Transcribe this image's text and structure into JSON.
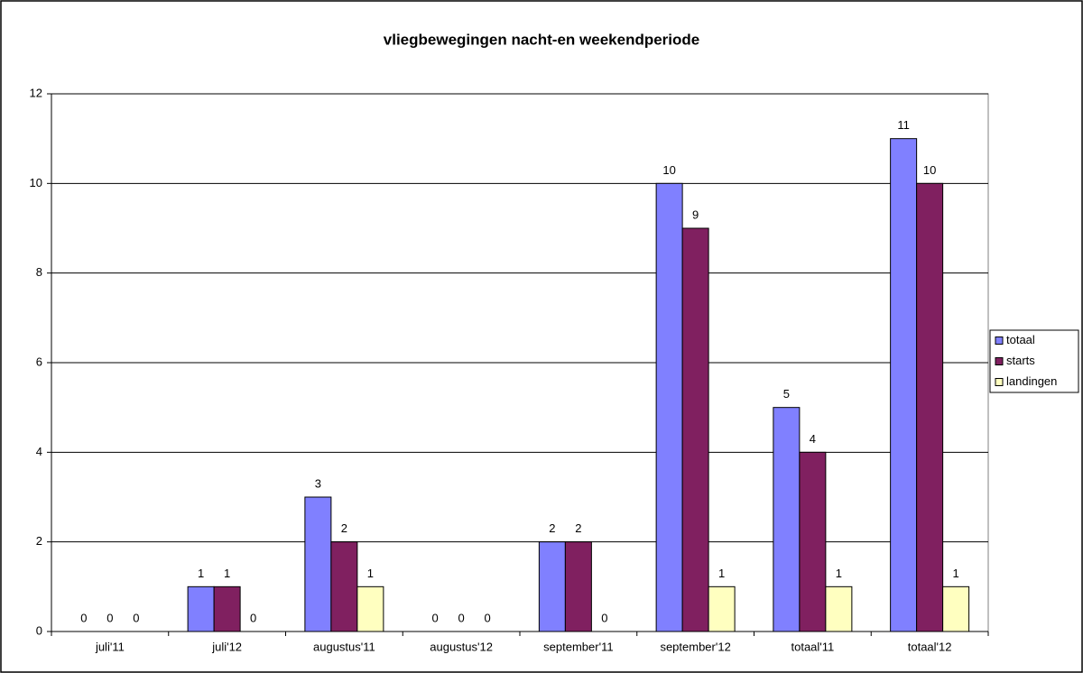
{
  "chart_data": {
    "type": "bar",
    "title": "vliegbewegingen nacht-en weekendperiode",
    "categories": [
      "juli'11",
      "juli'12",
      "augustus'11",
      "augustus'12",
      "september'11",
      "september'12",
      "totaal'11",
      "totaal'12"
    ],
    "series": [
      {
        "name": "totaal",
        "color": "#8080ff",
        "values": [
          0,
          1,
          3,
          0,
          2,
          10,
          5,
          11
        ]
      },
      {
        "name": "starts",
        "color": "#802060",
        "values": [
          0,
          1,
          2,
          0,
          2,
          9,
          4,
          10
        ]
      },
      {
        "name": "landingen",
        "color": "#ffffc0",
        "values": [
          0,
          0,
          1,
          0,
          0,
          1,
          1,
          1
        ]
      }
    ],
    "ylim": [
      0,
      12
    ],
    "yticks": [
      0,
      2,
      4,
      6,
      8,
      10,
      12
    ],
    "grid": true,
    "legend": "right"
  }
}
